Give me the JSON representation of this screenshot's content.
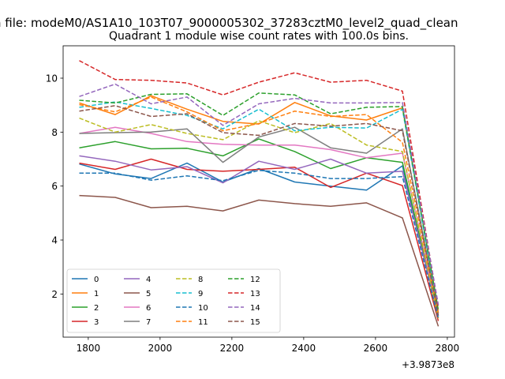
{
  "suptitle": "n file: modeM0/AS1A10_103T07_9000005302_37283cztM0_level2_quad_clean",
  "chart_data": {
    "type": "line",
    "title": "Quadrant 1 module wise count rates with 100.0s bins.",
    "xlabel": "",
    "ylabel": "",
    "offset_label": "+3.9873e8",
    "x_offset": 398730000,
    "x": [
      1775,
      1875,
      1975,
      2075,
      2175,
      2275,
      2375,
      2475,
      2575,
      2675,
      2775
    ],
    "xlim": [
      1730,
      2820
    ],
    "ylim": [
      0.4,
      11.2
    ],
    "xticks": [
      1800,
      2000,
      2200,
      2400,
      2600,
      2800
    ],
    "yticks": [
      2,
      4,
      6,
      8,
      10
    ],
    "grid": false,
    "legend_position": "lower-left",
    "legend_columns": 4,
    "series": [
      {
        "name": "0",
        "color": "#1f77b4",
        "dash": "solid",
        "values": [
          6.82,
          6.45,
          6.28,
          6.85,
          6.15,
          6.65,
          6.15,
          6.0,
          5.85,
          6.75,
          1.2
        ]
      },
      {
        "name": "1",
        "color": "#ff7f0e",
        "dash": "solid",
        "values": [
          9.08,
          8.65,
          9.35,
          8.85,
          8.4,
          8.3,
          9.1,
          8.6,
          8.45,
          8.9,
          1.4
        ]
      },
      {
        "name": "2",
        "color": "#2ca02c",
        "dash": "solid",
        "values": [
          7.42,
          7.65,
          7.38,
          7.4,
          7.12,
          7.75,
          7.28,
          6.65,
          7.05,
          6.88,
          1.1
        ]
      },
      {
        "name": "3",
        "color": "#d62728",
        "dash": "solid",
        "values": [
          6.85,
          6.62,
          7.0,
          6.62,
          6.55,
          6.62,
          6.7,
          5.95,
          6.48,
          6.02,
          1.0
        ]
      },
      {
        "name": "4",
        "color": "#9467bd",
        "dash": "solid",
        "values": [
          7.12,
          6.92,
          6.6,
          6.72,
          6.12,
          6.92,
          6.62,
          7.0,
          6.48,
          6.55,
          1.2
        ]
      },
      {
        "name": "5",
        "color": "#8c564b",
        "dash": "solid",
        "values": [
          5.65,
          5.58,
          5.2,
          5.25,
          5.08,
          5.48,
          5.35,
          5.25,
          5.38,
          4.82,
          0.8
        ]
      },
      {
        "name": "6",
        "color": "#e377c2",
        "dash": "solid",
        "values": [
          7.95,
          8.18,
          7.95,
          7.65,
          7.55,
          7.52,
          7.52,
          7.35,
          7.05,
          7.22,
          1.2
        ]
      },
      {
        "name": "7",
        "color": "#7f7f7f",
        "dash": "solid",
        "values": [
          7.95,
          7.98,
          8.0,
          8.12,
          6.88,
          7.82,
          8.18,
          7.42,
          7.22,
          8.12,
          1.3
        ]
      },
      {
        "name": "8",
        "color": "#bcbd22",
        "dash": "dashed",
        "values": [
          8.52,
          8.0,
          8.28,
          7.95,
          7.72,
          8.42,
          7.98,
          8.32,
          7.52,
          7.28,
          1.1
        ]
      },
      {
        "name": "9",
        "color": "#17becf",
        "dash": "dashed",
        "values": [
          8.92,
          9.12,
          8.88,
          8.62,
          8.12,
          8.85,
          8.05,
          8.18,
          8.15,
          8.85,
          1.3
        ]
      },
      {
        "name": "10",
        "color": "#1f77b4",
        "dash": "dashed",
        "values": [
          6.48,
          6.48,
          6.22,
          6.38,
          6.2,
          6.58,
          6.48,
          6.28,
          6.28,
          6.35,
          1.1
        ]
      },
      {
        "name": "11",
        "color": "#ff7f0e",
        "dash": "dashed",
        "values": [
          9.02,
          8.75,
          9.3,
          8.75,
          8.05,
          8.32,
          8.78,
          8.58,
          8.65,
          7.62,
          1.3
        ]
      },
      {
        "name": "12",
        "color": "#2ca02c",
        "dash": "dashed",
        "values": [
          9.18,
          9.08,
          9.4,
          9.42,
          8.62,
          9.45,
          9.38,
          8.68,
          8.92,
          8.95,
          1.4
        ]
      },
      {
        "name": "13",
        "color": "#d62728",
        "dash": "dashed",
        "values": [
          10.65,
          9.95,
          9.92,
          9.82,
          9.38,
          9.85,
          10.2,
          9.85,
          9.92,
          9.52,
          1.5
        ]
      },
      {
        "name": "14",
        "color": "#9467bd",
        "dash": "dashed",
        "values": [
          9.32,
          9.78,
          9.05,
          9.3,
          8.25,
          9.05,
          9.25,
          9.08,
          9.08,
          9.1,
          1.6
        ]
      },
      {
        "name": "15",
        "color": "#8c564b",
        "dash": "dashed",
        "values": [
          8.78,
          8.98,
          8.58,
          8.68,
          7.98,
          7.88,
          8.32,
          8.22,
          8.32,
          8.05,
          1.2
        ]
      }
    ]
  }
}
